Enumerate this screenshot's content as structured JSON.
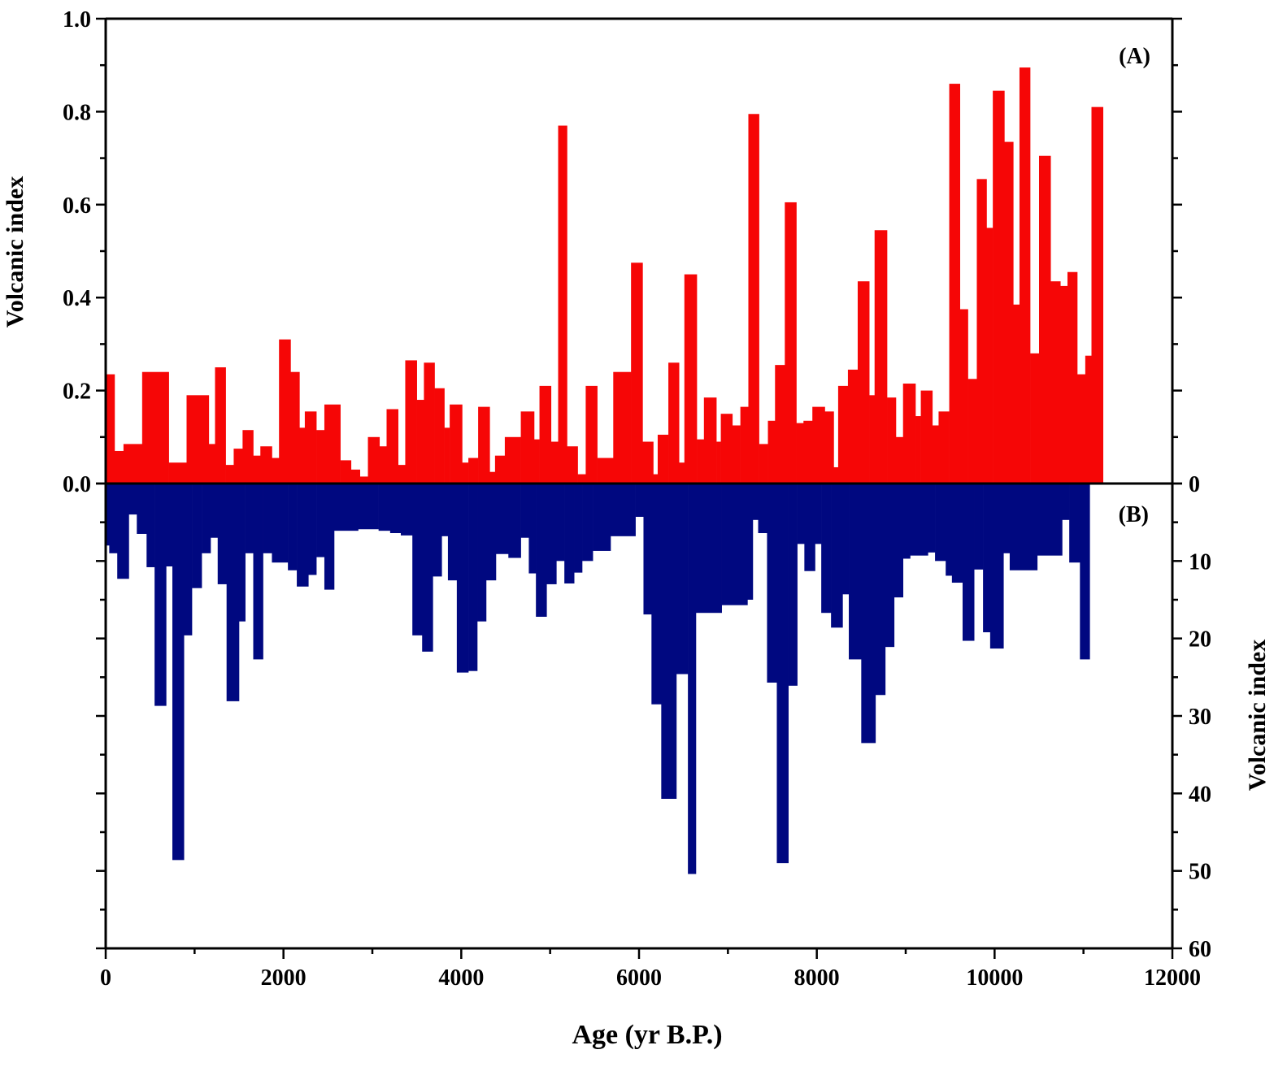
{
  "chart_data": [
    {
      "type": "bar",
      "panel_label": "(A)",
      "ylabel": "Volcanic index",
      "xlabel": "Age (yr B.P.)",
      "ylim": [
        0,
        1.0
      ],
      "yticks": [
        "0.0",
        "0.2",
        "0.4",
        "0.6",
        "0.8",
        "1.0"
      ],
      "xlim": [
        0,
        12000
      ],
      "xticks": [
        "0",
        "2000",
        "4000",
        "6000",
        "8000",
        "10000",
        "12000"
      ],
      "color": "#f60606",
      "bin_edges": [
        0,
        100,
        200,
        410,
        710,
        910,
        1160,
        1230,
        1350,
        1440,
        1540,
        1660,
        1740,
        1870,
        1950,
        2080,
        2180,
        2240,
        2370,
        2460,
        2640,
        2760,
        2860,
        2950,
        3080,
        3160,
        3290,
        3370,
        3500,
        3580,
        3700,
        3810,
        3870,
        4010,
        4080,
        4190,
        4320,
        4380,
        4490,
        4670,
        4820,
        4880,
        5010,
        5090,
        5190,
        5310,
        5400,
        5530,
        5710,
        5910,
        6040,
        6160,
        6210,
        6330,
        6450,
        6510,
        6650,
        6730,
        6870,
        6920,
        7050,
        7140,
        7230,
        7350,
        7450,
        7530,
        7640,
        7770,
        7850,
        7950,
        8090,
        8190,
        8240,
        8350,
        8460,
        8590,
        8650,
        8790,
        8890,
        8970,
        9110,
        9170,
        9300,
        9370,
        9490,
        9610,
        9700,
        9800,
        9910,
        9980,
        10110,
        10210,
        10280,
        10400,
        10500,
        10630,
        10740,
        10820,
        10930,
        11020,
        11090,
        11220
      ],
      "values": [
        0.235,
        0.07,
        0.085,
        0.24,
        0.045,
        0.19,
        0.085,
        0.25,
        0.04,
        0.075,
        0.115,
        0.06,
        0.08,
        0.055,
        0.31,
        0.24,
        0.12,
        0.155,
        0.115,
        0.17,
        0.05,
        0.03,
        0.015,
        0.1,
        0.08,
        0.16,
        0.04,
        0.265,
        0.18,
        0.26,
        0.205,
        0.12,
        0.17,
        0.045,
        0.055,
        0.165,
        0.025,
        0.06,
        0.1,
        0.155,
        0.095,
        0.21,
        0.09,
        0.77,
        0.08,
        0.02,
        0.21,
        0.055,
        0.24,
        0.475,
        0.09,
        0.02,
        0.105,
        0.26,
        0.045,
        0.45,
        0.095,
        0.185,
        0.09,
        0.15,
        0.125,
        0.165,
        0.795,
        0.085,
        0.135,
        0.255,
        0.605,
        0.13,
        0.135,
        0.165,
        0.155,
        0.035,
        0.21,
        0.245,
        0.435,
        0.19,
        0.545,
        0.185,
        0.1,
        0.215,
        0.145,
        0.2,
        0.125,
        0.155,
        0.86,
        0.375,
        0.225,
        0.655,
        0.55,
        0.845,
        0.735,
        0.385,
        0.895,
        0.28,
        0.705,
        0.435,
        0.425,
        0.455,
        0.235,
        0.275,
        0.81
      ]
    },
    {
      "type": "bar",
      "panel_label": "(B)",
      "ylabel": "Volcanic index",
      "ylim": [
        60,
        0
      ],
      "yticks": [
        "0",
        "10",
        "20",
        "30",
        "40",
        "50",
        "60"
      ],
      "orientation": "downward",
      "color": "#000880",
      "bin_edges": [
        0,
        40,
        130,
        260,
        350,
        460,
        550,
        680,
        750,
        880,
        970,
        1080,
        1180,
        1260,
        1360,
        1500,
        1570,
        1660,
        1770,
        1870,
        2050,
        2150,
        2280,
        2370,
        2460,
        2570,
        2840,
        3070,
        3200,
        3320,
        3450,
        3560,
        3680,
        3780,
        3850,
        3950,
        4080,
        4180,
        4280,
        4390,
        4530,
        4670,
        4760,
        4840,
        4960,
        5070,
        5160,
        5270,
        5360,
        5480,
        5680,
        5960,
        6050,
        6140,
        6250,
        6420,
        6550,
        6640,
        6930,
        7220,
        7280,
        7340,
        7440,
        7550,
        7680,
        7780,
        7860,
        7980,
        8050,
        8160,
        8290,
        8360,
        8500,
        8660,
        8770,
        8870,
        8970,
        9050,
        9250,
        9330,
        9450,
        9520,
        9640,
        9770,
        9870,
        9950,
        10100,
        10170,
        10480,
        10760,
        10840,
        10960,
        11070
      ],
      "values": [
        8,
        9,
        12.3,
        4,
        6.5,
        10.8,
        28.7,
        10.7,
        48.6,
        19.6,
        13.5,
        9,
        7,
        13,
        28.1,
        17.8,
        9,
        22.7,
        9,
        10.2,
        11.2,
        13.3,
        11.8,
        9.5,
        13.7,
        6.1,
        5.9,
        6.1,
        6.4,
        6.7,
        19.6,
        21.7,
        12,
        6.8,
        12.5,
        24.4,
        24.2,
        17.8,
        12.5,
        9.1,
        9.6,
        7,
        11.6,
        17.2,
        13,
        10,
        12.9,
        11.5,
        10,
        8.7,
        6.8,
        4.3,
        16.9,
        28.5,
        40.7,
        24.6,
        50.4,
        16.7,
        15.7,
        15,
        4.7,
        6.4,
        25.7,
        49,
        26.1,
        7.8,
        11.3,
        7.8,
        16.7,
        18.6,
        14.3,
        22.7,
        33.5,
        27.3,
        21.1,
        14.7,
        9.7,
        9.3,
        8.9,
        10,
        11.9,
        12.8,
        20.3,
        11.1,
        19.2,
        21.3,
        9,
        11.2,
        9.3,
        4.7,
        10.2,
        22.7
      ]
    }
  ]
}
